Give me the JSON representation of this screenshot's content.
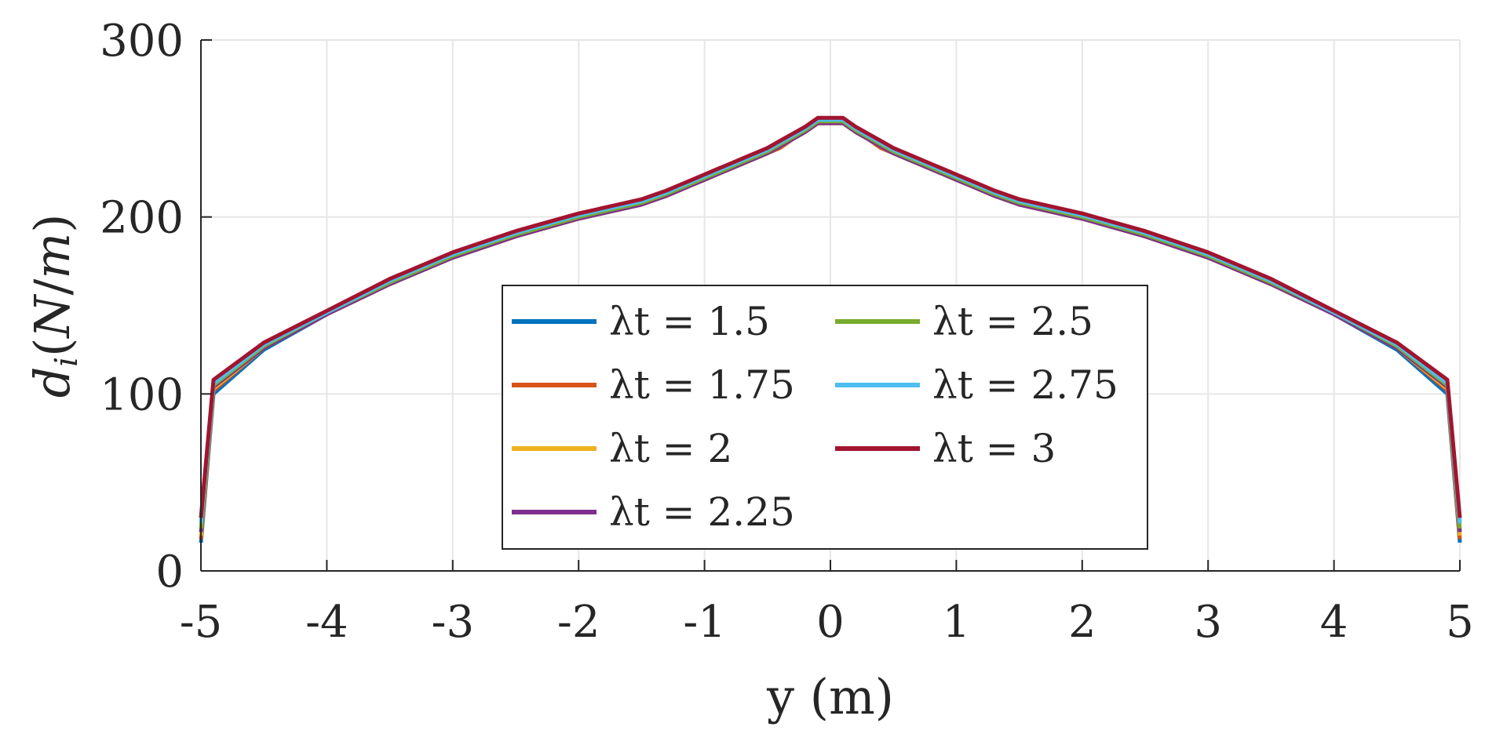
{
  "chart_data": {
    "type": "line",
    "xlabel": "y (m)",
    "ylabel": "d_i(N/m)",
    "xlim": [
      -5,
      5
    ],
    "ylim": [
      0,
      300
    ],
    "xticks": [
      "-5",
      "-4",
      "-3",
      "-2",
      "-1",
      "0",
      "1",
      "2",
      "3",
      "4",
      "5"
    ],
    "yticks": [
      "0",
      "100",
      "200",
      "300"
    ],
    "grid": true,
    "legend_position": "center",
    "legend_columns": 2,
    "x": [
      0,
      0.05,
      0.1,
      0.2,
      0.3,
      0.4,
      0.5,
      0.6,
      0.7,
      0.8,
      0.9,
      1.0,
      1.1,
      1.2,
      1.3,
      1.5,
      2.0,
      2.5,
      3.0,
      3.5,
      4.0,
      4.5,
      4.9,
      5.0
    ],
    "series": [
      {
        "name": "λt = 1.5",
        "color": "#0072BD",
        "values": [
          254,
          254,
          254,
          249,
          245,
          240,
          237,
          234,
          231,
          228,
          225,
          222,
          219,
          216,
          213,
          208,
          200,
          190,
          178,
          163,
          145,
          125,
          100,
          16
        ]
      },
      {
        "name": "λt = 1.75",
        "color": "#D95319",
        "values": [
          253,
          253,
          253,
          248,
          244,
          239,
          236,
          233,
          230,
          227,
          224,
          221,
          218,
          215,
          212,
          207,
          199,
          189,
          177,
          162,
          145,
          126,
          102,
          18
        ]
      },
      {
        "name": "λt = 2",
        "color": "#EDB120",
        "values": [
          253,
          253,
          253,
          248,
          244,
          240,
          236,
          233,
          230,
          227,
          224,
          221,
          218,
          215,
          212,
          207,
          199,
          189,
          177,
          162,
          145,
          126,
          103,
          20
        ]
      },
      {
        "name": "λt = 2.25",
        "color": "#7E2F8E",
        "values": [
          253,
          253,
          253,
          248,
          244,
          240,
          236,
          233,
          230,
          227,
          224,
          221,
          218,
          215,
          212,
          207,
          199,
          189,
          177,
          162,
          145,
          126,
          104,
          22
        ]
      },
      {
        "name": "λt = 2.5",
        "color": "#77AC30",
        "values": [
          254,
          254,
          254,
          249,
          245,
          241,
          237,
          234,
          231,
          228,
          225,
          222,
          219,
          216,
          213,
          208,
          200,
          190,
          178,
          163,
          146,
          127,
          105,
          24
        ]
      },
      {
        "name": "λt = 2.75",
        "color": "#4DBEEE",
        "values": [
          255,
          255,
          255,
          250,
          246,
          242,
          238,
          235,
          232,
          229,
          226,
          223,
          220,
          217,
          214,
          209,
          201,
          191,
          179,
          164,
          146,
          128,
          106,
          27
        ]
      },
      {
        "name": "λt = 3",
        "color": "#A2142F",
        "values": [
          256,
          256,
          256,
          251,
          247,
          243,
          239,
          236,
          233,
          230,
          227,
          224,
          221,
          218,
          215,
          210,
          202,
          192,
          180,
          165,
          147,
          129,
          108,
          30
        ]
      }
    ]
  }
}
